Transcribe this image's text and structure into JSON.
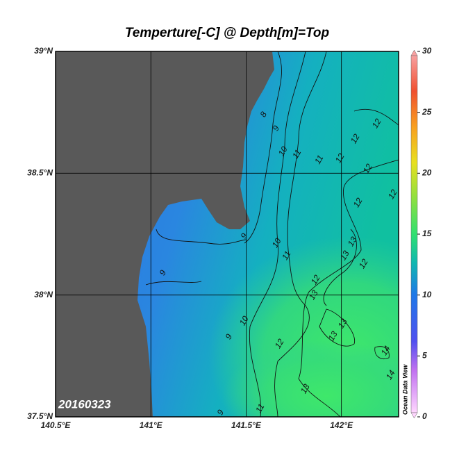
{
  "title": "Temperture[-C] @ Depth[m]=Top",
  "date_label": "20160323",
  "watermark": "Ocean Data View",
  "map": {
    "xlim": [
      140.5,
      142.3
    ],
    "ylim": [
      37.5,
      39
    ],
    "xticks": [
      {
        "value": 140.5,
        "label": "140.5°E"
      },
      {
        "value": 141,
        "label": "141°E"
      },
      {
        "value": 141.5,
        "label": "141.5°E"
      },
      {
        "value": 142,
        "label": "142°E"
      }
    ],
    "yticks": [
      {
        "value": 37.5,
        "label": "37.5°N"
      },
      {
        "value": 38,
        "label": "38°N"
      },
      {
        "value": 38.5,
        "label": "38.5°N"
      },
      {
        "value": 39,
        "label": "39°N"
      }
    ],
    "grid": true
  },
  "colorbar": {
    "range": [
      0,
      30
    ],
    "ticks": [
      0,
      5,
      10,
      15,
      20,
      25,
      30
    ]
  },
  "contour_labels": [
    8,
    9,
    10,
    11,
    11,
    12,
    12,
    12,
    12,
    12,
    12,
    9,
    10,
    13,
    11,
    13,
    12,
    9,
    12,
    13,
    10,
    9,
    13,
    13,
    12,
    14,
    14,
    13,
    11,
    9
  ]
}
